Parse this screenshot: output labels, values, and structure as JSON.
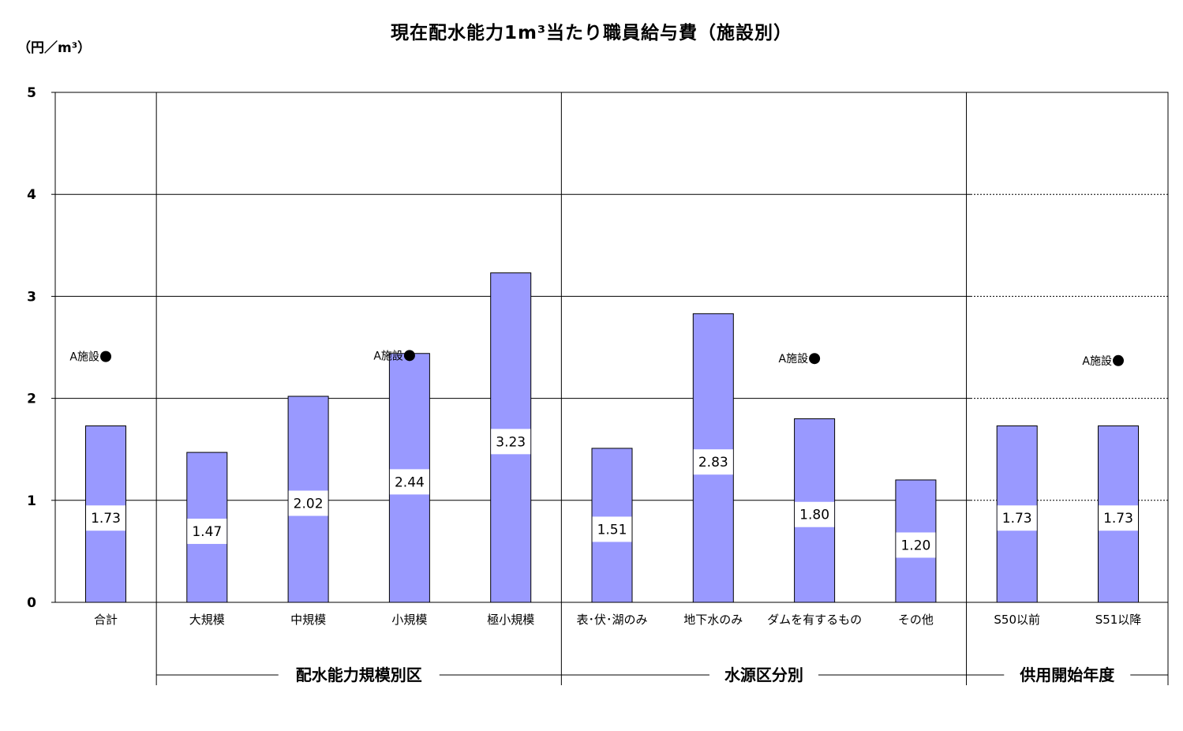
{
  "chart_data": {
    "type": "bar",
    "title": "現在配水能力1m³当たり職員給与費（施設別）",
    "ylabel": "（円／m³）",
    "ylim": [
      0,
      5
    ],
    "yticks": [
      "0",
      "1",
      "2",
      "3",
      "4",
      "5"
    ],
    "grid": true,
    "bar_color": "#9999ff",
    "categories": [
      "合計",
      "大規模",
      "中規模",
      "小規模",
      "極小規模",
      "表･伏･湖のみ",
      "地下水のみ",
      "ダムを有するもの",
      "その他",
      "S50以前",
      "S51以降"
    ],
    "values": [
      1.73,
      1.47,
      2.02,
      2.44,
      3.23,
      1.51,
      2.83,
      1.8,
      1.2,
      1.73,
      1.73
    ],
    "data_labels": [
      "1.73",
      "1.47",
      "2.02",
      "2.44",
      "3.23",
      "1.51",
      "2.83",
      "1.80",
      "1.20",
      "1.73",
      "1.73"
    ],
    "groups": [
      {
        "label": "配水能力規模別区",
        "categories": [
          "大規模",
          "中規模",
          "小規模",
          "極小規模"
        ]
      },
      {
        "label": "水源区分別",
        "categories": [
          "表･伏･湖のみ",
          "地下水のみ",
          "ダムを有するもの",
          "その他"
        ]
      },
      {
        "label": "供用開始年度",
        "categories": [
          "S50以前",
          "S51以降"
        ]
      }
    ],
    "markers": [
      {
        "label": "A施設",
        "category": "合計",
        "value": 2.41
      },
      {
        "label": "A施設",
        "category": "小規模",
        "value": 2.42
      },
      {
        "label": "A施設",
        "category": "ダムを有するもの",
        "value": 2.39
      },
      {
        "label": "A施設",
        "category": "S51以降",
        "value": 2.37
      }
    ]
  }
}
